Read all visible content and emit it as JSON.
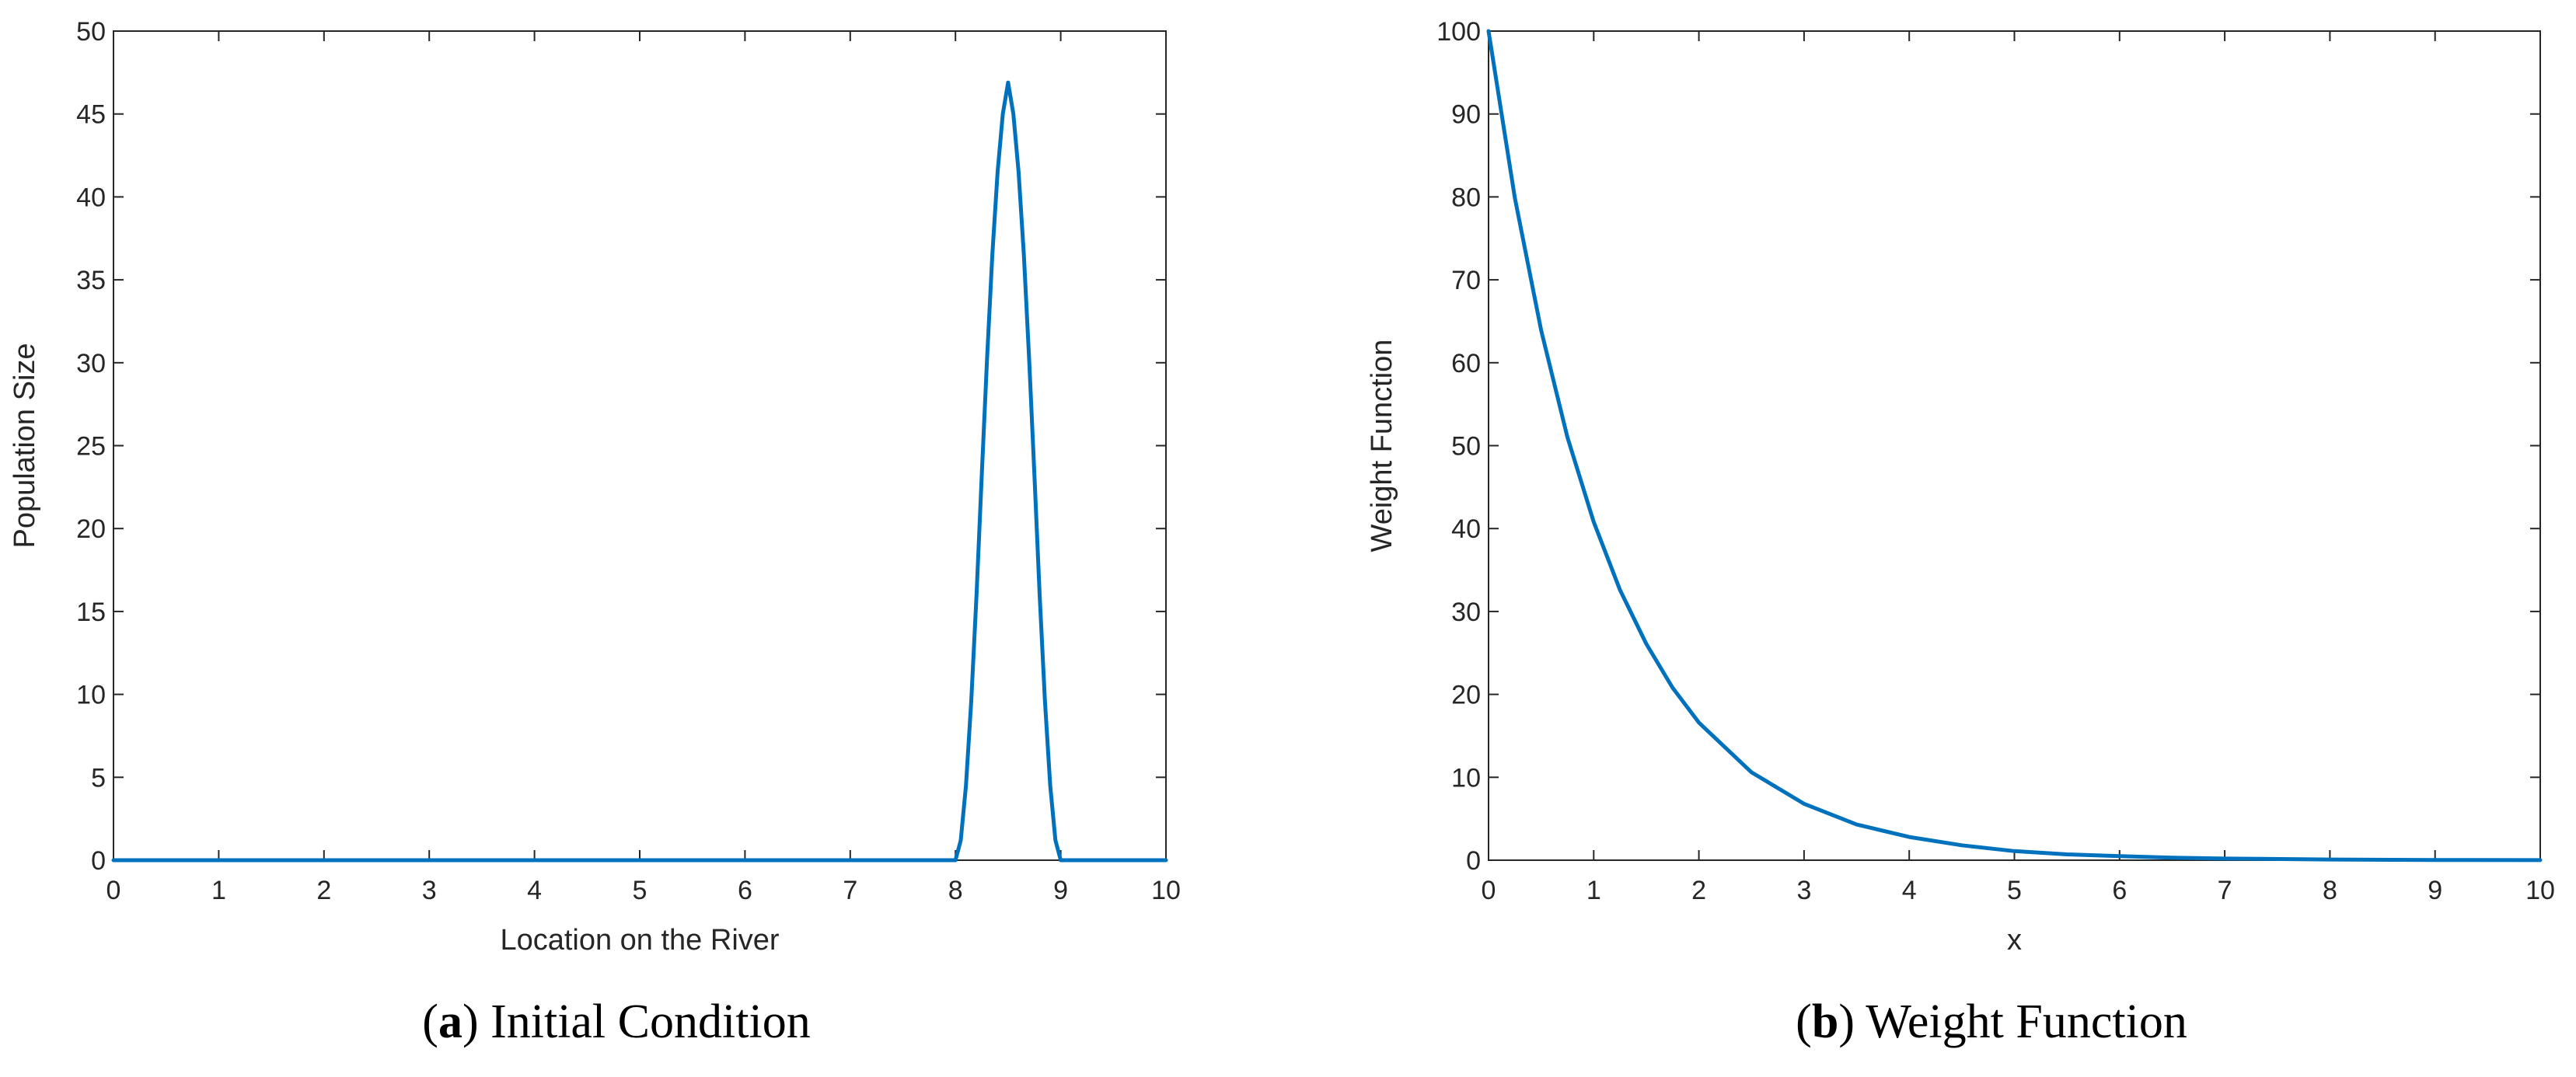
{
  "chart_data": [
    {
      "id": "a",
      "type": "line",
      "title": "",
      "caption_label": "a",
      "caption_text": "Initial Condition",
      "xlabel": "Location on the River",
      "ylabel": "Population Size",
      "xlim": [
        0,
        10
      ],
      "ylim": [
        0,
        50
      ],
      "xticks": [
        0,
        1,
        2,
        3,
        4,
        5,
        6,
        7,
        8,
        9,
        10
      ],
      "yticks": [
        0,
        5,
        10,
        15,
        20,
        25,
        30,
        35,
        40,
        45,
        50
      ],
      "grid": false,
      "line_color": "#0072BD",
      "series": [
        {
          "name": "Initial condition",
          "x": [
            0,
            1,
            2,
            3,
            4,
            5,
            6,
            7,
            8,
            8.05,
            8.1,
            8.15,
            8.2,
            8.25,
            8.3,
            8.35,
            8.4,
            8.45,
            8.5,
            8.55,
            8.6,
            8.65,
            8.7,
            8.75,
            8.8,
            8.85,
            8.9,
            8.95,
            9,
            10
          ],
          "y": [
            0,
            0,
            0,
            0,
            0,
            0,
            0,
            0,
            0,
            1.2,
            4.5,
            9.6,
            16,
            23.2,
            30.2,
            36.5,
            41.5,
            45,
            46.9,
            45,
            41.5,
            36.5,
            30.2,
            23.2,
            16,
            9.6,
            4.5,
            1.2,
            0,
            0
          ]
        }
      ]
    },
    {
      "id": "b",
      "type": "line",
      "title": "",
      "caption_label": "b",
      "caption_text": "Weight Function",
      "xlabel": "x",
      "ylabel": "Weight Function",
      "xlim": [
        0,
        10
      ],
      "ylim": [
        0,
        100
      ],
      "xticks": [
        0,
        1,
        2,
        3,
        4,
        5,
        6,
        7,
        8,
        9,
        10
      ],
      "yticks": [
        0,
        10,
        20,
        30,
        40,
        50,
        60,
        70,
        80,
        90,
        100
      ],
      "grid": false,
      "line_color": "#0072BD",
      "series": [
        {
          "name": "Weight function",
          "x": [
            0,
            0.25,
            0.5,
            0.75,
            1,
            1.25,
            1.5,
            1.75,
            2,
            2.5,
            3,
            3.5,
            4,
            4.5,
            5,
            5.5,
            6,
            6.5,
            7,
            8,
            9,
            10
          ],
          "y": [
            100,
            79.9,
            63.9,
            51.0,
            40.8,
            32.6,
            26.1,
            20.8,
            16.6,
            10.6,
            6.8,
            4.3,
            2.8,
            1.8,
            1.1,
            0.7,
            0.5,
            0.3,
            0.2,
            0.08,
            0.03,
            0.01
          ]
        }
      ]
    }
  ]
}
